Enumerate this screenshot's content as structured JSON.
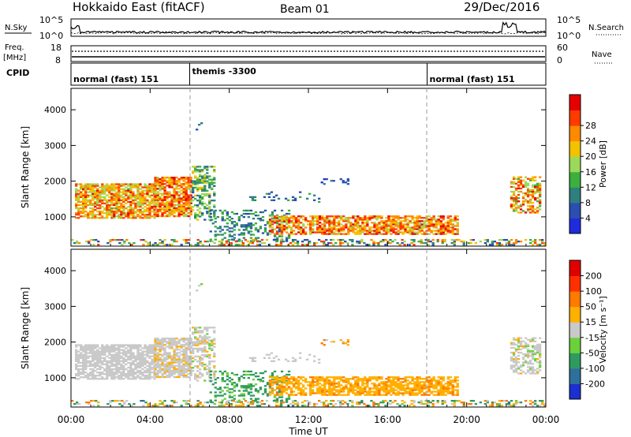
{
  "header": {
    "station": "Hokkaido East (fitACF)",
    "beam": "Beam 01",
    "date": "29/Dec/2016"
  },
  "nsky_panel": {
    "left_label": "N.Sky",
    "right_label": "N.Search",
    "top_tick": "10^5",
    "bottom_tick": "10^0",
    "right_top_tick": "10^5",
    "right_bottom_tick": "10^0"
  },
  "freq_panel": {
    "left_label_1": "Freq.",
    "left_label_2": "[MHz]",
    "left_top_tick": "18",
    "left_bottom_tick": "8",
    "right_label": "Nave",
    "right_top_tick": "60",
    "right_bottom_tick": "0"
  },
  "cpid_panel": {
    "label": "CPID",
    "segments": [
      {
        "name": "normal (fast) 151",
        "start_hour": 0
      },
      {
        "name": "themis -3300",
        "start_hour": 6
      },
      {
        "name": "normal (fast) 151",
        "start_hour": 18
      }
    ]
  },
  "chart_data": [
    {
      "type": "heatmap",
      "name": "power",
      "ylabel": "Slant Range [km]",
      "xlabel": "Time UT",
      "xlim_hours": [
        0,
        24
      ],
      "ylim": [
        180,
        4600
      ],
      "y_ticks": [
        "1000",
        "2000",
        "3000",
        "4000"
      ],
      "x_ticks": [
        "00:00",
        "04:00",
        "08:00",
        "12:00",
        "16:00",
        "20:00",
        "00:00"
      ],
      "colorbar_label": "Power [dB]",
      "colorbar_ticks": [
        "4",
        "8",
        "12",
        "16",
        "20",
        "24",
        "28"
      ],
      "colorbar_colors": [
        "#1f2bdd",
        "#2a4fb0",
        "#2f7f7f",
        "#3caf3c",
        "#9cd85a",
        "#f2c200",
        "#ff8a00",
        "#ff3b00",
        "#e60000"
      ],
      "value_range": [
        0,
        32
      ]
    },
    {
      "type": "heatmap",
      "name": "velocity",
      "ylabel": "Slant Range [km]",
      "xlabel": "Time UT",
      "xlim_hours": [
        0,
        24
      ],
      "ylim": [
        180,
        4600
      ],
      "y_ticks": [
        "1000",
        "2000",
        "3000",
        "4000"
      ],
      "x_ticks": [
        "00:00",
        "04:00",
        "08:00",
        "12:00",
        "16:00",
        "20:00",
        "00:00"
      ],
      "colorbar_label": "Velocity [m s⁻¹]",
      "colorbar_ticks": [
        "200",
        "100",
        "50",
        "15",
        "-15",
        "-50",
        "-100",
        "-200"
      ],
      "colorbar_colors": [
        "#1c2fd0",
        "#2f6f9c",
        "#2f9a5f",
        "#6bd13b",
        "#c9c9c9",
        "#ffb000",
        "#ff7a00",
        "#ff3000",
        "#e00000"
      ],
      "value_range": [
        -250,
        250
      ]
    }
  ]
}
